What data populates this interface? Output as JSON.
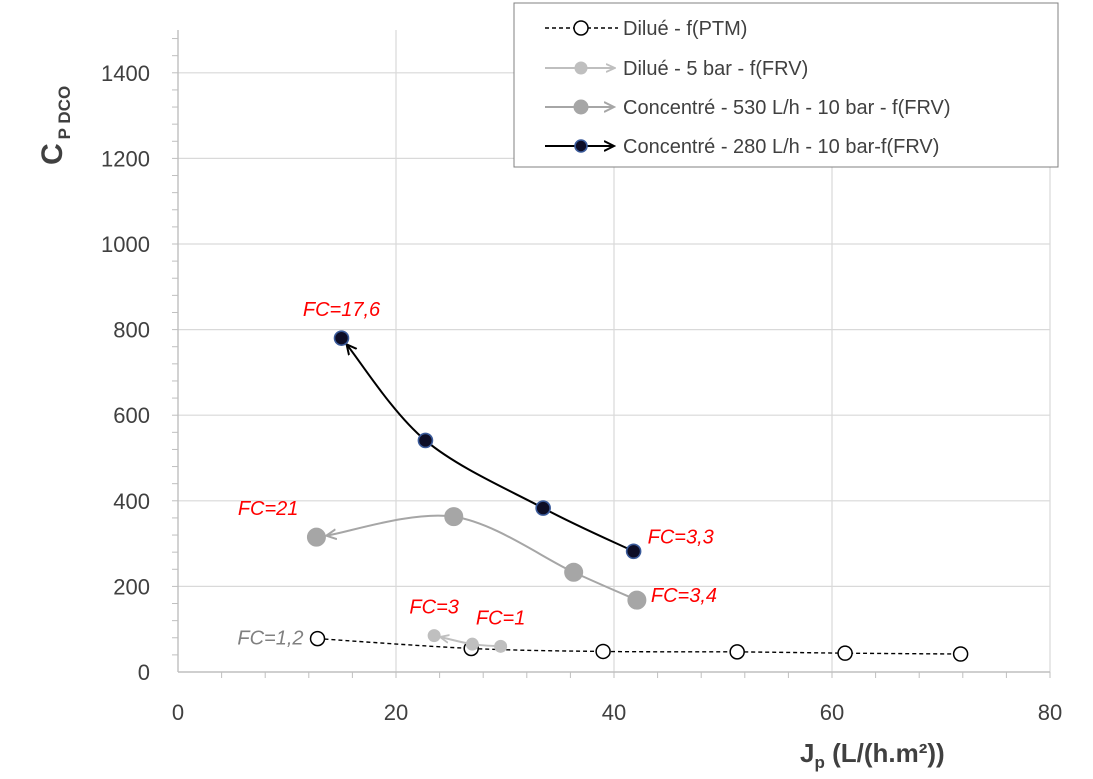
{
  "chart_data": {
    "type": "scatter",
    "xlabel_main": "J",
    "xlabel_sub": "p",
    "xlabel_rest": " (L/(h.m²))",
    "ylabel_main": "C",
    "ylabel_sub": "P DCO",
    "xlim": [
      0,
      80
    ],
    "ylim": [
      0,
      1500
    ],
    "x_ticks": [
      0,
      20,
      40,
      60,
      80
    ],
    "y_ticks": [
      0,
      200,
      400,
      600,
      800,
      1000,
      1200,
      1400
    ],
    "x_minor_step": 4,
    "y_minor_step": 40,
    "grid": true,
    "legend_position": "top-right",
    "series": [
      {
        "name": "Dilué - f(PTM)",
        "marker": "open-circle",
        "line": "dashed",
        "color": "#000000",
        "arrow": false,
        "x": [
          12.8,
          26.9,
          39.0,
          51.3,
          61.2,
          71.8
        ],
        "y": [
          78,
          55,
          48,
          47,
          44,
          42
        ]
      },
      {
        "name": "Dilué - 5 bar - f(FRV)",
        "marker": "small-filled-circle",
        "line": "solid",
        "color": "#bfbfbf",
        "arrow": true,
        "x": [
          29.6,
          27.0,
          23.5
        ],
        "y": [
          60,
          65,
          85
        ]
      },
      {
        "name": "Concentré - 530 L/h - 10 bar - f(FRV)",
        "marker": "large-filled-circle",
        "line": "solid",
        "color": "#a6a6a6",
        "arrow": true,
        "x": [
          42.1,
          36.3,
          25.3,
          12.7
        ],
        "y": [
          168,
          233,
          363,
          315
        ]
      },
      {
        "name": "Concentré - 280 L/h - 10 bar-f(FRV)",
        "marker": "dark-filled-circle",
        "line": "solid",
        "color": "#000000",
        "arrow": true,
        "x": [
          41.8,
          33.5,
          22.7,
          15.0
        ],
        "y": [
          282,
          383,
          541,
          780
        ]
      }
    ],
    "annotations": [
      {
        "text": "FC=17,6",
        "x": 15.0,
        "y": 780,
        "color": "#ff0000",
        "anchor": "above"
      },
      {
        "text": "FC=21",
        "x": 12.7,
        "y": 315,
        "color": "#ff0000",
        "anchor": "upper-left"
      },
      {
        "text": "FC=3,3",
        "x": 41.8,
        "y": 282,
        "color": "#ff0000",
        "anchor": "upper-right"
      },
      {
        "text": "FC=3,4",
        "x": 42.1,
        "y": 168,
        "color": "#ff0000",
        "anchor": "right"
      },
      {
        "text": "FC=3",
        "x": 23.5,
        "y": 85,
        "color": "#ff0000",
        "anchor": "above"
      },
      {
        "text": "FC=1",
        "x": 29.6,
        "y": 60,
        "color": "#ff0000",
        "anchor": "above"
      },
      {
        "text": "FC=1,2",
        "x": 12.8,
        "y": 78,
        "color": "#808080",
        "anchor": "left"
      }
    ]
  }
}
